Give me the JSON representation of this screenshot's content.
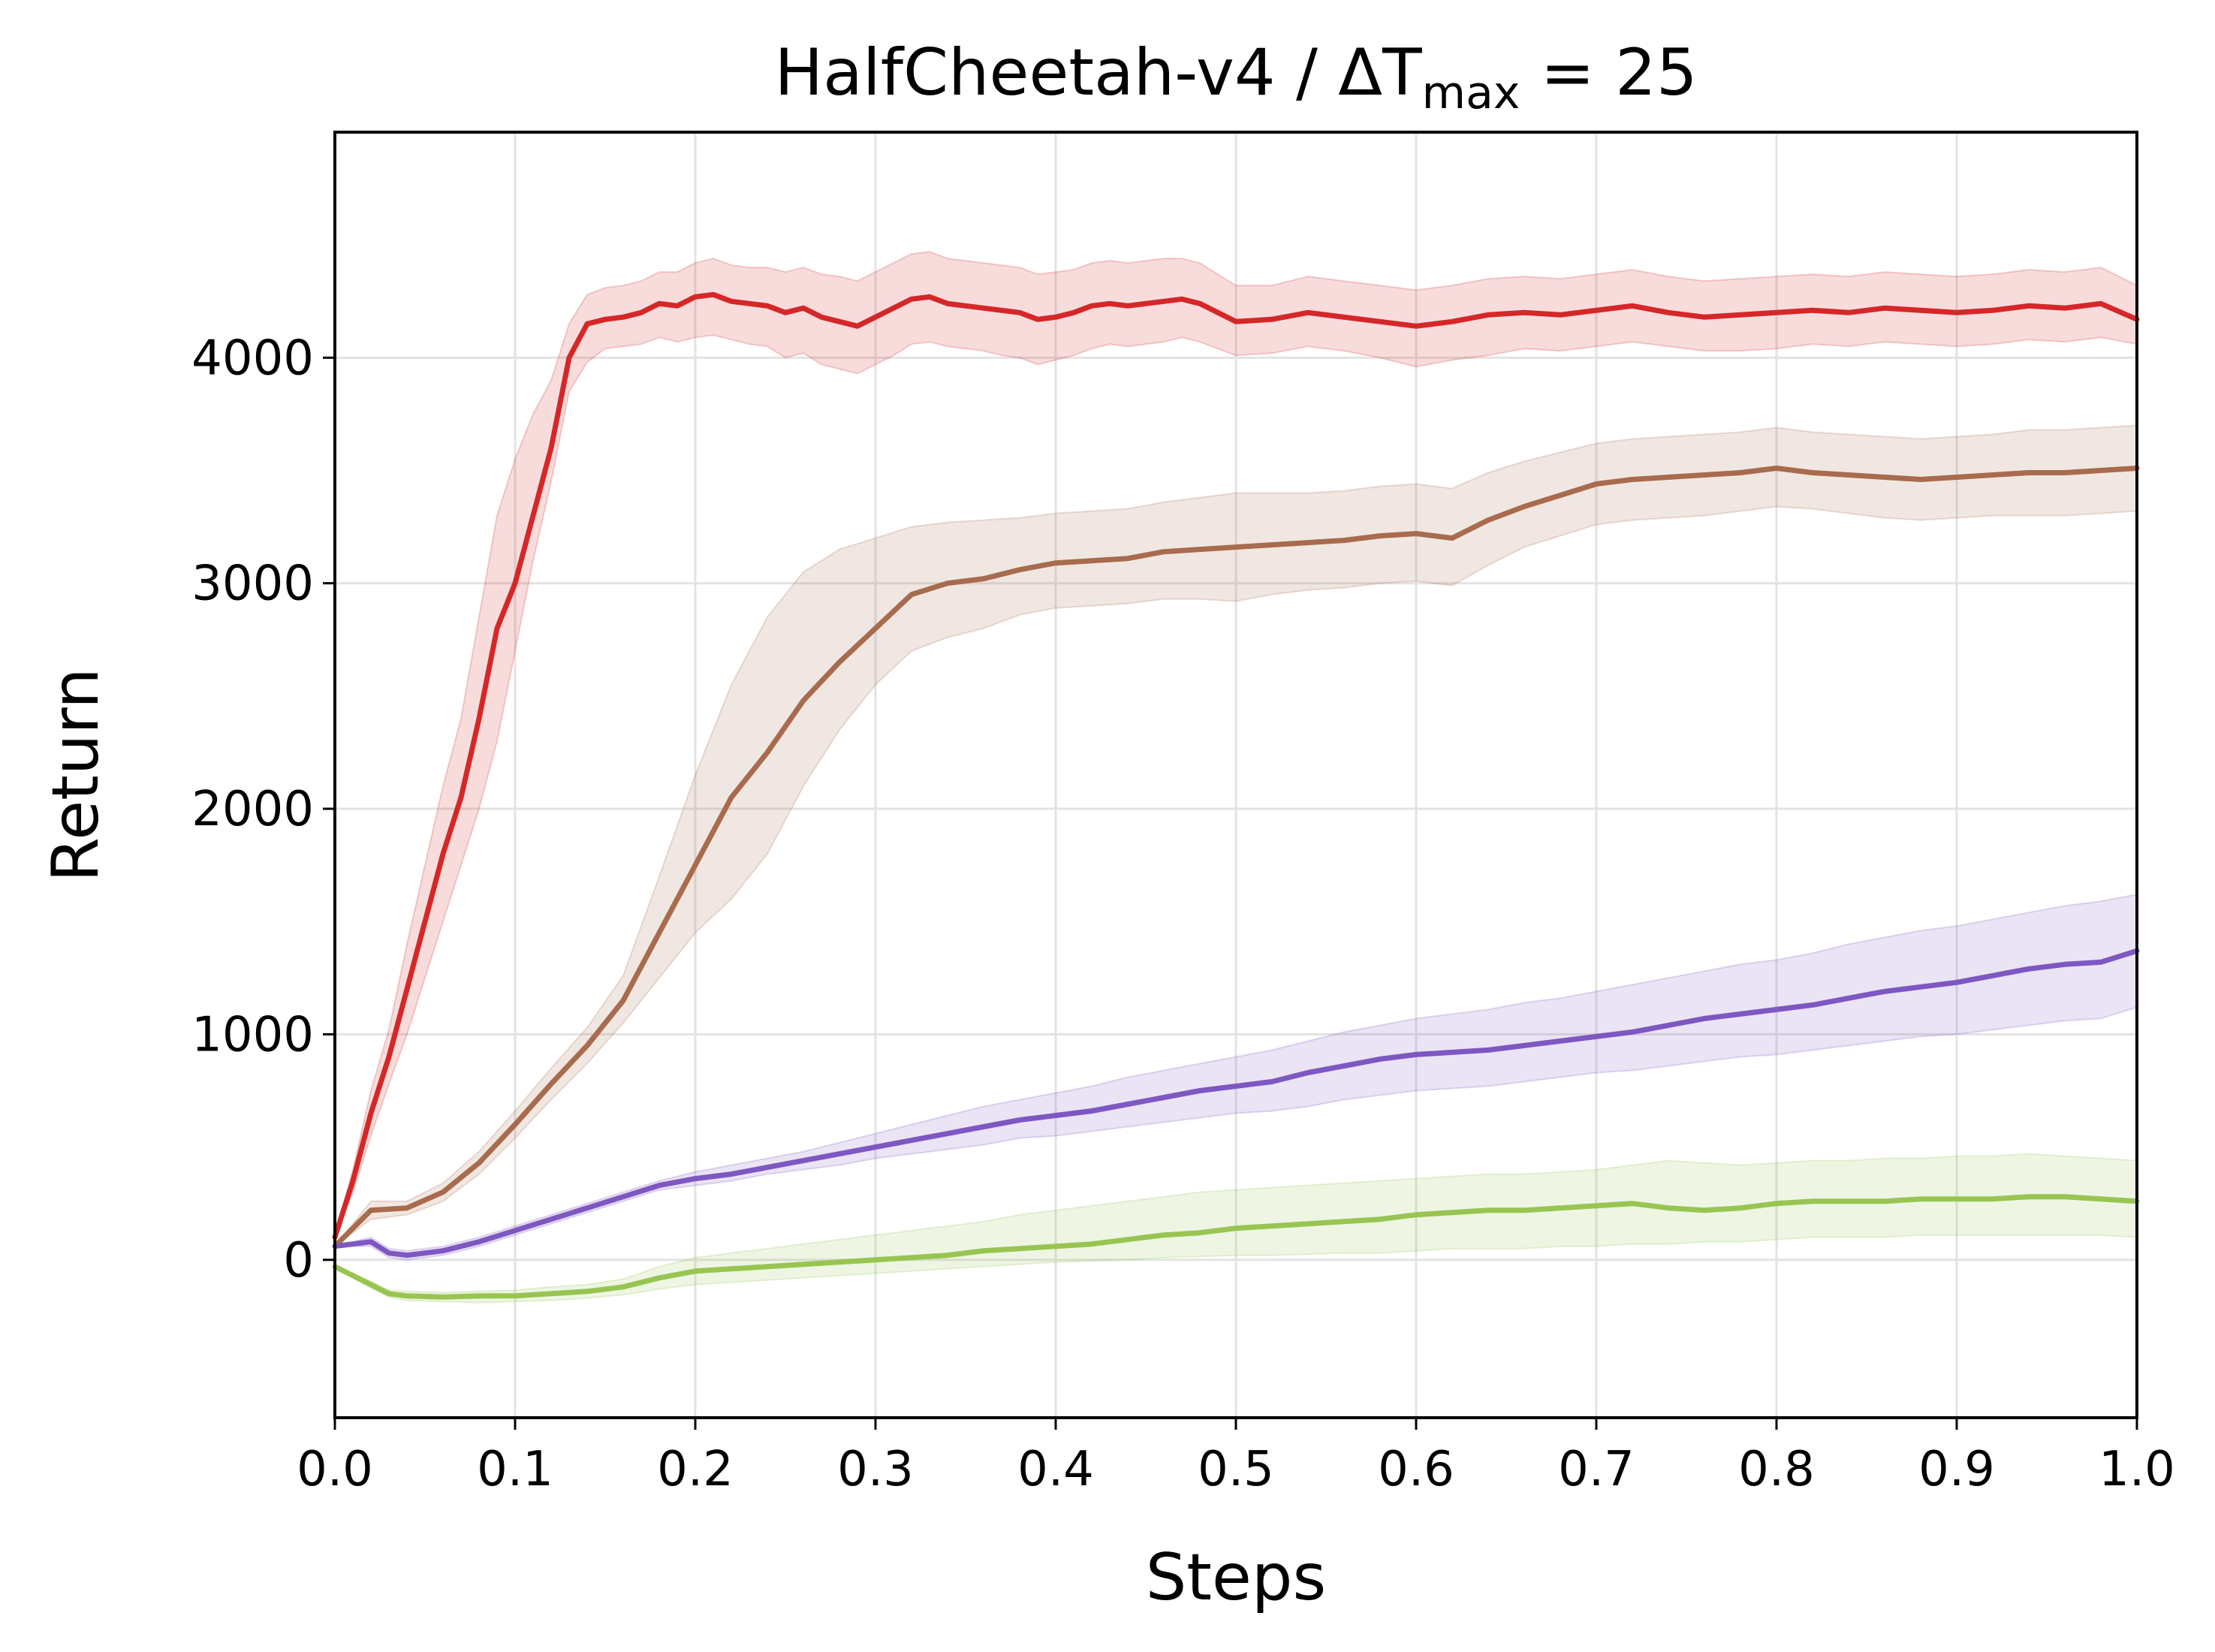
{
  "chart_data": {
    "type": "line",
    "title": {
      "prefix": "HalfCheetah-v4 / ΔT",
      "subscript": "max",
      "suffix": " = 25"
    },
    "xlabel": "Steps",
    "ylabel": "Return",
    "xlim": [
      0.0,
      1.0
    ],
    "ylim": [
      -700,
      5000
    ],
    "xticks": [
      0.0,
      0.1,
      0.2,
      0.3,
      0.4,
      0.5,
      0.6,
      0.7,
      0.8,
      0.9,
      1.0
    ],
    "xtick_labels": [
      "0.0",
      "0.1",
      "0.2",
      "0.3",
      "0.4",
      "0.5",
      "0.6",
      "0.7",
      "0.8",
      "0.9",
      "1.0"
    ],
    "yticks": [
      0,
      1000,
      2000,
      3000,
      4000
    ],
    "ytick_labels": [
      "0",
      "1000",
      "2000",
      "3000",
      "4000"
    ],
    "grid": true,
    "legend": "none",
    "series": [
      {
        "color": "#d62728",
        "x": [
          0.0,
          0.01,
          0.02,
          0.03,
          0.04,
          0.05,
          0.06,
          0.07,
          0.08,
          0.09,
          0.1,
          0.11,
          0.12,
          0.13,
          0.14,
          0.15,
          0.16,
          0.17,
          0.18,
          0.19,
          0.2,
          0.21,
          0.22,
          0.23,
          0.24,
          0.25,
          0.26,
          0.27,
          0.28,
          0.29,
          0.3,
          0.31,
          0.32,
          0.33,
          0.34,
          0.35,
          0.36,
          0.37,
          0.38,
          0.39,
          0.4,
          0.41,
          0.42,
          0.43,
          0.44,
          0.45,
          0.46,
          0.47,
          0.48,
          0.49,
          0.5,
          0.52,
          0.54,
          0.56,
          0.58,
          0.6,
          0.62,
          0.64,
          0.66,
          0.68,
          0.7,
          0.72,
          0.74,
          0.76,
          0.78,
          0.8,
          0.82,
          0.84,
          0.86,
          0.88,
          0.9,
          0.92,
          0.94,
          0.96,
          0.98,
          1.0
        ],
        "y": [
          100,
          350,
          650,
          900,
          1200,
          1500,
          1800,
          2050,
          2400,
          2800,
          3000,
          3300,
          3600,
          4000,
          4150,
          4170,
          4180,
          4200,
          4240,
          4230,
          4270,
          4280,
          4250,
          4240,
          4230,
          4200,
          4220,
          4180,
          4160,
          4140,
          4180,
          4220,
          4260,
          4270,
          4240,
          4230,
          4220,
          4210,
          4200,
          4170,
          4180,
          4200,
          4230,
          4240,
          4230,
          4240,
          4250,
          4260,
          4240,
          4200,
          4160,
          4170,
          4200,
          4180,
          4160,
          4140,
          4160,
          4190,
          4200,
          4190,
          4210,
          4230,
          4200,
          4180,
          4190,
          4200,
          4210,
          4200,
          4220,
          4210,
          4200,
          4210,
          4230,
          4220,
          4240,
          4170
        ],
        "lower": [
          100,
          300,
          550,
          780,
          1000,
          1250,
          1500,
          1750,
          2000,
          2300,
          2700,
          3100,
          3450,
          3850,
          3980,
          4040,
          4050,
          4060,
          4090,
          4070,
          4090,
          4100,
          4080,
          4060,
          4050,
          4000,
          4020,
          3970,
          3950,
          3930,
          3970,
          4010,
          4060,
          4070,
          4050,
          4040,
          4030,
          4010,
          4000,
          3970,
          3990,
          4010,
          4040,
          4060,
          4050,
          4060,
          4070,
          4090,
          4070,
          4040,
          4010,
          4020,
          4050,
          4030,
          4000,
          3960,
          3990,
          4010,
          4040,
          4030,
          4050,
          4070,
          4050,
          4030,
          4030,
          4040,
          4060,
          4050,
          4070,
          4060,
          4050,
          4060,
          4080,
          4070,
          4090,
          4060
        ],
        "upper": [
          100,
          400,
          750,
          1020,
          1400,
          1750,
          2100,
          2400,
          2850,
          3300,
          3550,
          3750,
          3900,
          4150,
          4280,
          4310,
          4320,
          4340,
          4380,
          4380,
          4420,
          4440,
          4410,
          4400,
          4400,
          4380,
          4400,
          4370,
          4360,
          4340,
          4380,
          4420,
          4460,
          4470,
          4440,
          4430,
          4420,
          4410,
          4400,
          4370,
          4380,
          4390,
          4420,
          4430,
          4420,
          4430,
          4440,
          4440,
          4420,
          4370,
          4320,
          4320,
          4360,
          4340,
          4320,
          4300,
          4320,
          4350,
          4360,
          4350,
          4370,
          4390,
          4360,
          4340,
          4350,
          4360,
          4370,
          4360,
          4380,
          4370,
          4360,
          4370,
          4390,
          4380,
          4400,
          4320
        ]
      },
      {
        "color": "#a86b4d",
        "x": [
          0.0,
          0.02,
          0.04,
          0.06,
          0.08,
          0.1,
          0.12,
          0.14,
          0.16,
          0.18,
          0.2,
          0.22,
          0.24,
          0.26,
          0.28,
          0.3,
          0.32,
          0.34,
          0.36,
          0.38,
          0.4,
          0.42,
          0.44,
          0.46,
          0.48,
          0.5,
          0.52,
          0.54,
          0.56,
          0.58,
          0.6,
          0.62,
          0.64,
          0.66,
          0.68,
          0.7,
          0.72,
          0.74,
          0.76,
          0.78,
          0.8,
          0.82,
          0.84,
          0.86,
          0.88,
          0.9,
          0.92,
          0.94,
          0.96,
          0.98,
          1.0
        ],
        "y": [
          60,
          220,
          230,
          300,
          430,
          600,
          780,
          950,
          1150,
          1450,
          1750,
          2050,
          2250,
          2480,
          2650,
          2800,
          2950,
          3000,
          3020,
          3060,
          3090,
          3100,
          3110,
          3140,
          3150,
          3160,
          3170,
          3180,
          3190,
          3210,
          3220,
          3200,
          3280,
          3340,
          3390,
          3440,
          3460,
          3470,
          3480,
          3490,
          3510,
          3490,
          3480,
          3470,
          3460,
          3470,
          3480,
          3490,
          3490,
          3500,
          3510
        ],
        "lower": [
          60,
          180,
          200,
          260,
          380,
          540,
          710,
          870,
          1050,
          1250,
          1450,
          1600,
          1800,
          2100,
          2350,
          2550,
          2700,
          2760,
          2800,
          2860,
          2890,
          2900,
          2910,
          2930,
          2930,
          2920,
          2950,
          2970,
          2980,
          3000,
          3010,
          2990,
          3080,
          3160,
          3210,
          3260,
          3280,
          3290,
          3300,
          3320,
          3340,
          3330,
          3310,
          3290,
          3280,
          3290,
          3300,
          3300,
          3300,
          3310,
          3320
        ],
        "upper": [
          60,
          260,
          260,
          340,
          480,
          660,
          850,
          1030,
          1260,
          1700,
          2150,
          2550,
          2850,
          3050,
          3150,
          3200,
          3250,
          3270,
          3280,
          3290,
          3310,
          3320,
          3330,
          3360,
          3380,
          3400,
          3400,
          3400,
          3410,
          3430,
          3440,
          3420,
          3490,
          3540,
          3580,
          3620,
          3640,
          3650,
          3660,
          3670,
          3690,
          3670,
          3660,
          3650,
          3640,
          3650,
          3660,
          3680,
          3680,
          3690,
          3700
        ]
      },
      {
        "color": "#7e57c2",
        "x": [
          0.0,
          0.02,
          0.03,
          0.04,
          0.06,
          0.08,
          0.1,
          0.12,
          0.14,
          0.16,
          0.18,
          0.2,
          0.22,
          0.24,
          0.26,
          0.28,
          0.3,
          0.32,
          0.34,
          0.36,
          0.38,
          0.4,
          0.42,
          0.44,
          0.46,
          0.48,
          0.5,
          0.52,
          0.54,
          0.56,
          0.58,
          0.6,
          0.62,
          0.64,
          0.66,
          0.68,
          0.7,
          0.72,
          0.74,
          0.76,
          0.78,
          0.8,
          0.82,
          0.84,
          0.86,
          0.88,
          0.9,
          0.92,
          0.94,
          0.96,
          0.98,
          1.0
        ],
        "y": [
          60,
          80,
          30,
          20,
          40,
          80,
          130,
          180,
          230,
          280,
          330,
          360,
          380,
          410,
          440,
          470,
          500,
          530,
          560,
          590,
          620,
          640,
          660,
          690,
          720,
          750,
          770,
          790,
          830,
          860,
          890,
          910,
          920,
          930,
          950,
          970,
          990,
          1010,
          1040,
          1070,
          1090,
          1110,
          1130,
          1160,
          1190,
          1210,
          1230,
          1260,
          1290,
          1310,
          1320,
          1370
        ],
        "lower": [
          60,
          60,
          10,
          0,
          20,
          60,
          110,
          160,
          210,
          260,
          310,
          330,
          350,
          380,
          400,
          420,
          450,
          470,
          490,
          510,
          540,
          550,
          570,
          590,
          610,
          630,
          650,
          660,
          680,
          710,
          730,
          750,
          760,
          770,
          790,
          810,
          830,
          840,
          860,
          880,
          900,
          910,
          930,
          950,
          970,
          990,
          1000,
          1020,
          1040,
          1060,
          1070,
          1120
        ],
        "upper": [
          60,
          100,
          50,
          40,
          60,
          100,
          150,
          200,
          250,
          300,
          350,
          390,
          420,
          450,
          480,
          520,
          560,
          600,
          640,
          680,
          710,
          740,
          770,
          810,
          840,
          870,
          900,
          930,
          970,
          1010,
          1040,
          1070,
          1090,
          1110,
          1140,
          1160,
          1190,
          1220,
          1250,
          1280,
          1310,
          1330,
          1360,
          1400,
          1430,
          1460,
          1480,
          1510,
          1540,
          1570,
          1590,
          1620
        ]
      },
      {
        "color": "#98c552",
        "x": [
          0.0,
          0.01,
          0.02,
          0.03,
          0.04,
          0.06,
          0.08,
          0.1,
          0.12,
          0.14,
          0.16,
          0.18,
          0.2,
          0.22,
          0.24,
          0.26,
          0.28,
          0.3,
          0.32,
          0.34,
          0.36,
          0.38,
          0.4,
          0.42,
          0.44,
          0.46,
          0.48,
          0.5,
          0.52,
          0.54,
          0.56,
          0.58,
          0.6,
          0.62,
          0.64,
          0.66,
          0.68,
          0.7,
          0.72,
          0.74,
          0.76,
          0.78,
          0.8,
          0.82,
          0.84,
          0.86,
          0.88,
          0.9,
          0.92,
          0.94,
          0.96,
          0.98,
          1.0
        ],
        "y": [
          -30,
          -70,
          -110,
          -150,
          -160,
          -165,
          -160,
          -160,
          -150,
          -140,
          -120,
          -80,
          -50,
          -40,
          -30,
          -20,
          -10,
          0,
          10,
          20,
          40,
          50,
          60,
          70,
          90,
          110,
          120,
          140,
          150,
          160,
          170,
          180,
          200,
          210,
          220,
          220,
          230,
          240,
          250,
          230,
          220,
          230,
          250,
          260,
          260,
          260,
          270,
          270,
          270,
          280,
          280,
          270,
          260
        ],
        "lower": [
          -30,
          -80,
          -125,
          -165,
          -180,
          -185,
          -190,
          -185,
          -180,
          -170,
          -155,
          -130,
          -110,
          -100,
          -90,
          -80,
          -70,
          -60,
          -50,
          -40,
          -30,
          -20,
          -10,
          -5,
          0,
          10,
          15,
          20,
          20,
          25,
          30,
          30,
          40,
          50,
          50,
          50,
          60,
          60,
          70,
          70,
          80,
          80,
          90,
          100,
          100,
          100,
          110,
          110,
          110,
          110,
          110,
          110,
          100
        ],
        "upper": [
          -30,
          -60,
          -95,
          -135,
          -140,
          -145,
          -140,
          -135,
          -120,
          -110,
          -85,
          -30,
          10,
          30,
          50,
          70,
          90,
          110,
          130,
          150,
          170,
          200,
          220,
          240,
          260,
          280,
          300,
          310,
          320,
          330,
          340,
          350,
          360,
          370,
          380,
          380,
          390,
          400,
          420,
          440,
          430,
          420,
          430,
          440,
          440,
          450,
          450,
          460,
          460,
          470,
          460,
          450,
          440
        ]
      }
    ]
  }
}
